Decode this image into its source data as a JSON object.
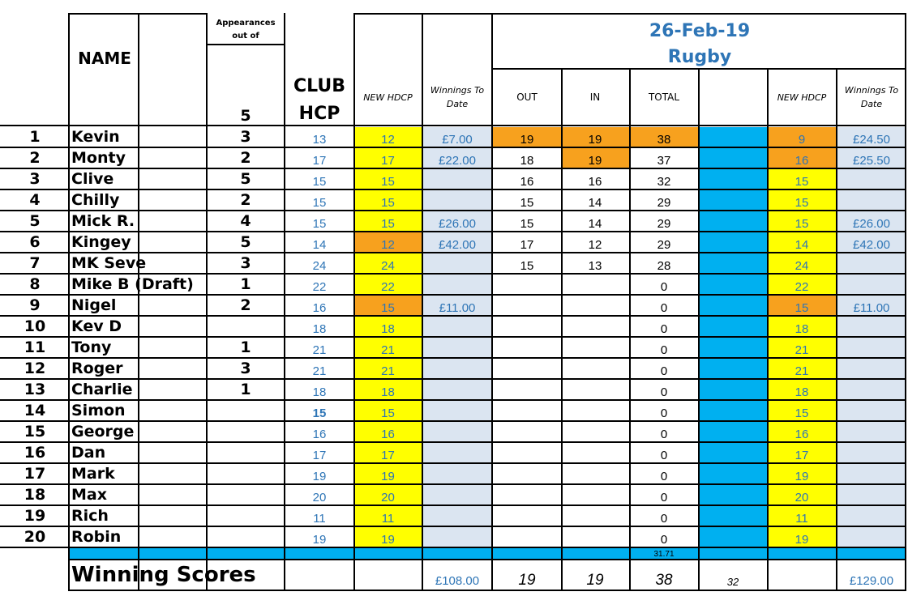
{
  "header": {
    "name_label": "NAME",
    "appearances_label": "Appearances out of",
    "appearances_total": "5",
    "club_hcp_line1": "CLUB",
    "club_hcp_line2": "HCP",
    "new_hdcp_label": "NEW HDCP",
    "winnings_label": "Winnings To Date",
    "event_date": "26-Feb-19",
    "event_name": "Rugby",
    "out_label": "OUT",
    "in_label": "IN",
    "total_label": "TOTAL",
    "new_hdcp2_label": "NEW HDCP",
    "winnings2_label": "Winnings To Date"
  },
  "rows": [
    {
      "n": "1",
      "name": "Kevin",
      "app": "3",
      "club": "13",
      "hdcp": "12",
      "hdcp_color": "yellow",
      "win": "£7.00",
      "out": "19",
      "in": "19",
      "total": "38",
      "score_color": "orange",
      "new": "9",
      "new_color": "orange",
      "win2": "£24.50"
    },
    {
      "n": "2",
      "name": "Monty",
      "app": "2",
      "club": "17",
      "hdcp": "17",
      "hdcp_color": "yellow",
      "win": "£22.00",
      "out": "18",
      "in": "19",
      "in_color": "orange",
      "total": "37",
      "new": "16",
      "new_color": "orange",
      "win2": "£25.50"
    },
    {
      "n": "3",
      "name": "Clive",
      "app": "5",
      "club": "15",
      "hdcp": "15",
      "hdcp_color": "yellow",
      "win": "",
      "out": "16",
      "in": "16",
      "total": "32",
      "new": "15",
      "new_color": "yellow",
      "win2": ""
    },
    {
      "n": "4",
      "name": "Chilly",
      "app": "2",
      "club": "15",
      "hdcp": "15",
      "hdcp_color": "yellow",
      "win": "",
      "out": "15",
      "in": "14",
      "total": "29",
      "new": "15",
      "new_color": "yellow",
      "win2": ""
    },
    {
      "n": "5",
      "name": "Mick R.",
      "app": "4",
      "club": "15",
      "hdcp": "15",
      "hdcp_color": "yellow",
      "win": "£26.00",
      "out": "15",
      "in": "14",
      "total": "29",
      "new": "15",
      "new_color": "yellow",
      "win2": "£26.00"
    },
    {
      "n": "6",
      "name": "Kingey",
      "app": "5",
      "club": "14",
      "hdcp": "12",
      "hdcp_color": "orange",
      "win": "£42.00",
      "out": "17",
      "in": "12",
      "total": "29",
      "new": "14",
      "new_color": "yellow",
      "win2": "£42.00"
    },
    {
      "n": "7",
      "name": "MK Seve",
      "app": "3",
      "club": "24",
      "hdcp": "24",
      "hdcp_color": "yellow",
      "win": "",
      "out": "15",
      "in": "13",
      "total": "28",
      "new": "24",
      "new_color": "yellow",
      "win2": ""
    },
    {
      "n": "8",
      "name": "Mike B (Draft)",
      "app": "1",
      "club": "22",
      "hdcp": "22",
      "hdcp_color": "yellow",
      "win": "",
      "out": "",
      "in": "",
      "total": "0",
      "new": "22",
      "new_color": "yellow",
      "win2": ""
    },
    {
      "n": "9",
      "name": "Nigel",
      "app": "2",
      "club": "16",
      "hdcp": "15",
      "hdcp_color": "orange",
      "win": "£11.00",
      "out": "",
      "in": "",
      "total": "0",
      "new": "15",
      "new_color": "orange",
      "win2": "£11.00"
    },
    {
      "n": "10",
      "name": "Kev D",
      "app": "",
      "club": "18",
      "hdcp": "18",
      "hdcp_color": "yellow",
      "win": "",
      "out": "",
      "in": "",
      "total": "0",
      "new": "18",
      "new_color": "yellow",
      "win2": ""
    },
    {
      "n": "11",
      "name": "Tony",
      "app": "1",
      "club": "21",
      "hdcp": "21",
      "hdcp_color": "yellow",
      "win": "",
      "out": "",
      "in": "",
      "total": "0",
      "new": "21",
      "new_color": "yellow",
      "win2": ""
    },
    {
      "n": "12",
      "name": "Roger",
      "app": "3",
      "club": "21",
      "hdcp": "21",
      "hdcp_color": "yellow",
      "win": "",
      "out": "",
      "in": "",
      "total": "0",
      "new": "21",
      "new_color": "yellow",
      "win2": ""
    },
    {
      "n": "13",
      "name": "Charlie",
      "app": "1",
      "club": "18",
      "hdcp": "18",
      "hdcp_color": "yellow",
      "win": "",
      "out": "",
      "in": "",
      "total": "0",
      "new": "18",
      "new_color": "yellow",
      "win2": ""
    },
    {
      "n": "14",
      "name": "Simon",
      "app": "",
      "club": "15",
      "club_bold": true,
      "hdcp": "15",
      "hdcp_color": "yellow",
      "win": "",
      "out": "",
      "in": "",
      "total": "0",
      "new": "15",
      "new_color": "yellow",
      "win2": ""
    },
    {
      "n": "15",
      "name": "George",
      "app": "",
      "club": "16",
      "hdcp": "16",
      "hdcp_color": "yellow",
      "win": "",
      "out": "",
      "in": "",
      "total": "0",
      "new": "16",
      "new_color": "yellow",
      "win2": ""
    },
    {
      "n": "16",
      "name": "Dan",
      "app": "",
      "club": "17",
      "hdcp": "17",
      "hdcp_color": "yellow",
      "win": "",
      "out": "",
      "in": "",
      "total": "0",
      "new": "17",
      "new_color": "yellow",
      "win2": ""
    },
    {
      "n": "17",
      "name": "Mark",
      "app": "",
      "club": "19",
      "hdcp": "19",
      "hdcp_color": "yellow",
      "win": "",
      "out": "",
      "in": "",
      "total": "0",
      "new": "19",
      "new_color": "yellow",
      "win2": ""
    },
    {
      "n": "18",
      "name": "Max",
      "app": "",
      "club": "20",
      "hdcp": "20",
      "hdcp_color": "yellow",
      "win": "",
      "out": "",
      "in": "",
      "total": "0",
      "new": "20",
      "new_color": "yellow",
      "win2": ""
    },
    {
      "n": "19",
      "name": "Rich",
      "app": "",
      "club": "11",
      "hdcp": "11",
      "hdcp_color": "yellow",
      "win": "",
      "out": "",
      "in": "",
      "total": "0",
      "new": "11",
      "new_color": "yellow",
      "win2": ""
    },
    {
      "n": "20",
      "name": "Robin",
      "app": "",
      "club": "19",
      "hdcp": "19",
      "hdcp_color": "yellow",
      "win": "",
      "out": "",
      "in": "",
      "total": "0",
      "new": "19",
      "new_color": "yellow",
      "win2": ""
    }
  ],
  "average_total": "31.71",
  "footer": {
    "label": "Winning Scores",
    "winnings": "£108.00",
    "out": "19",
    "in": "19",
    "total": "38",
    "blank_col": "32",
    "winnings2": "£129.00"
  },
  "colors": {
    "yellow": "#ffff00",
    "orange": "#f7a11e",
    "cyan": "#00b0f0",
    "light_blue": "#dbe5f1",
    "blue_text": "#2e75b6"
  }
}
